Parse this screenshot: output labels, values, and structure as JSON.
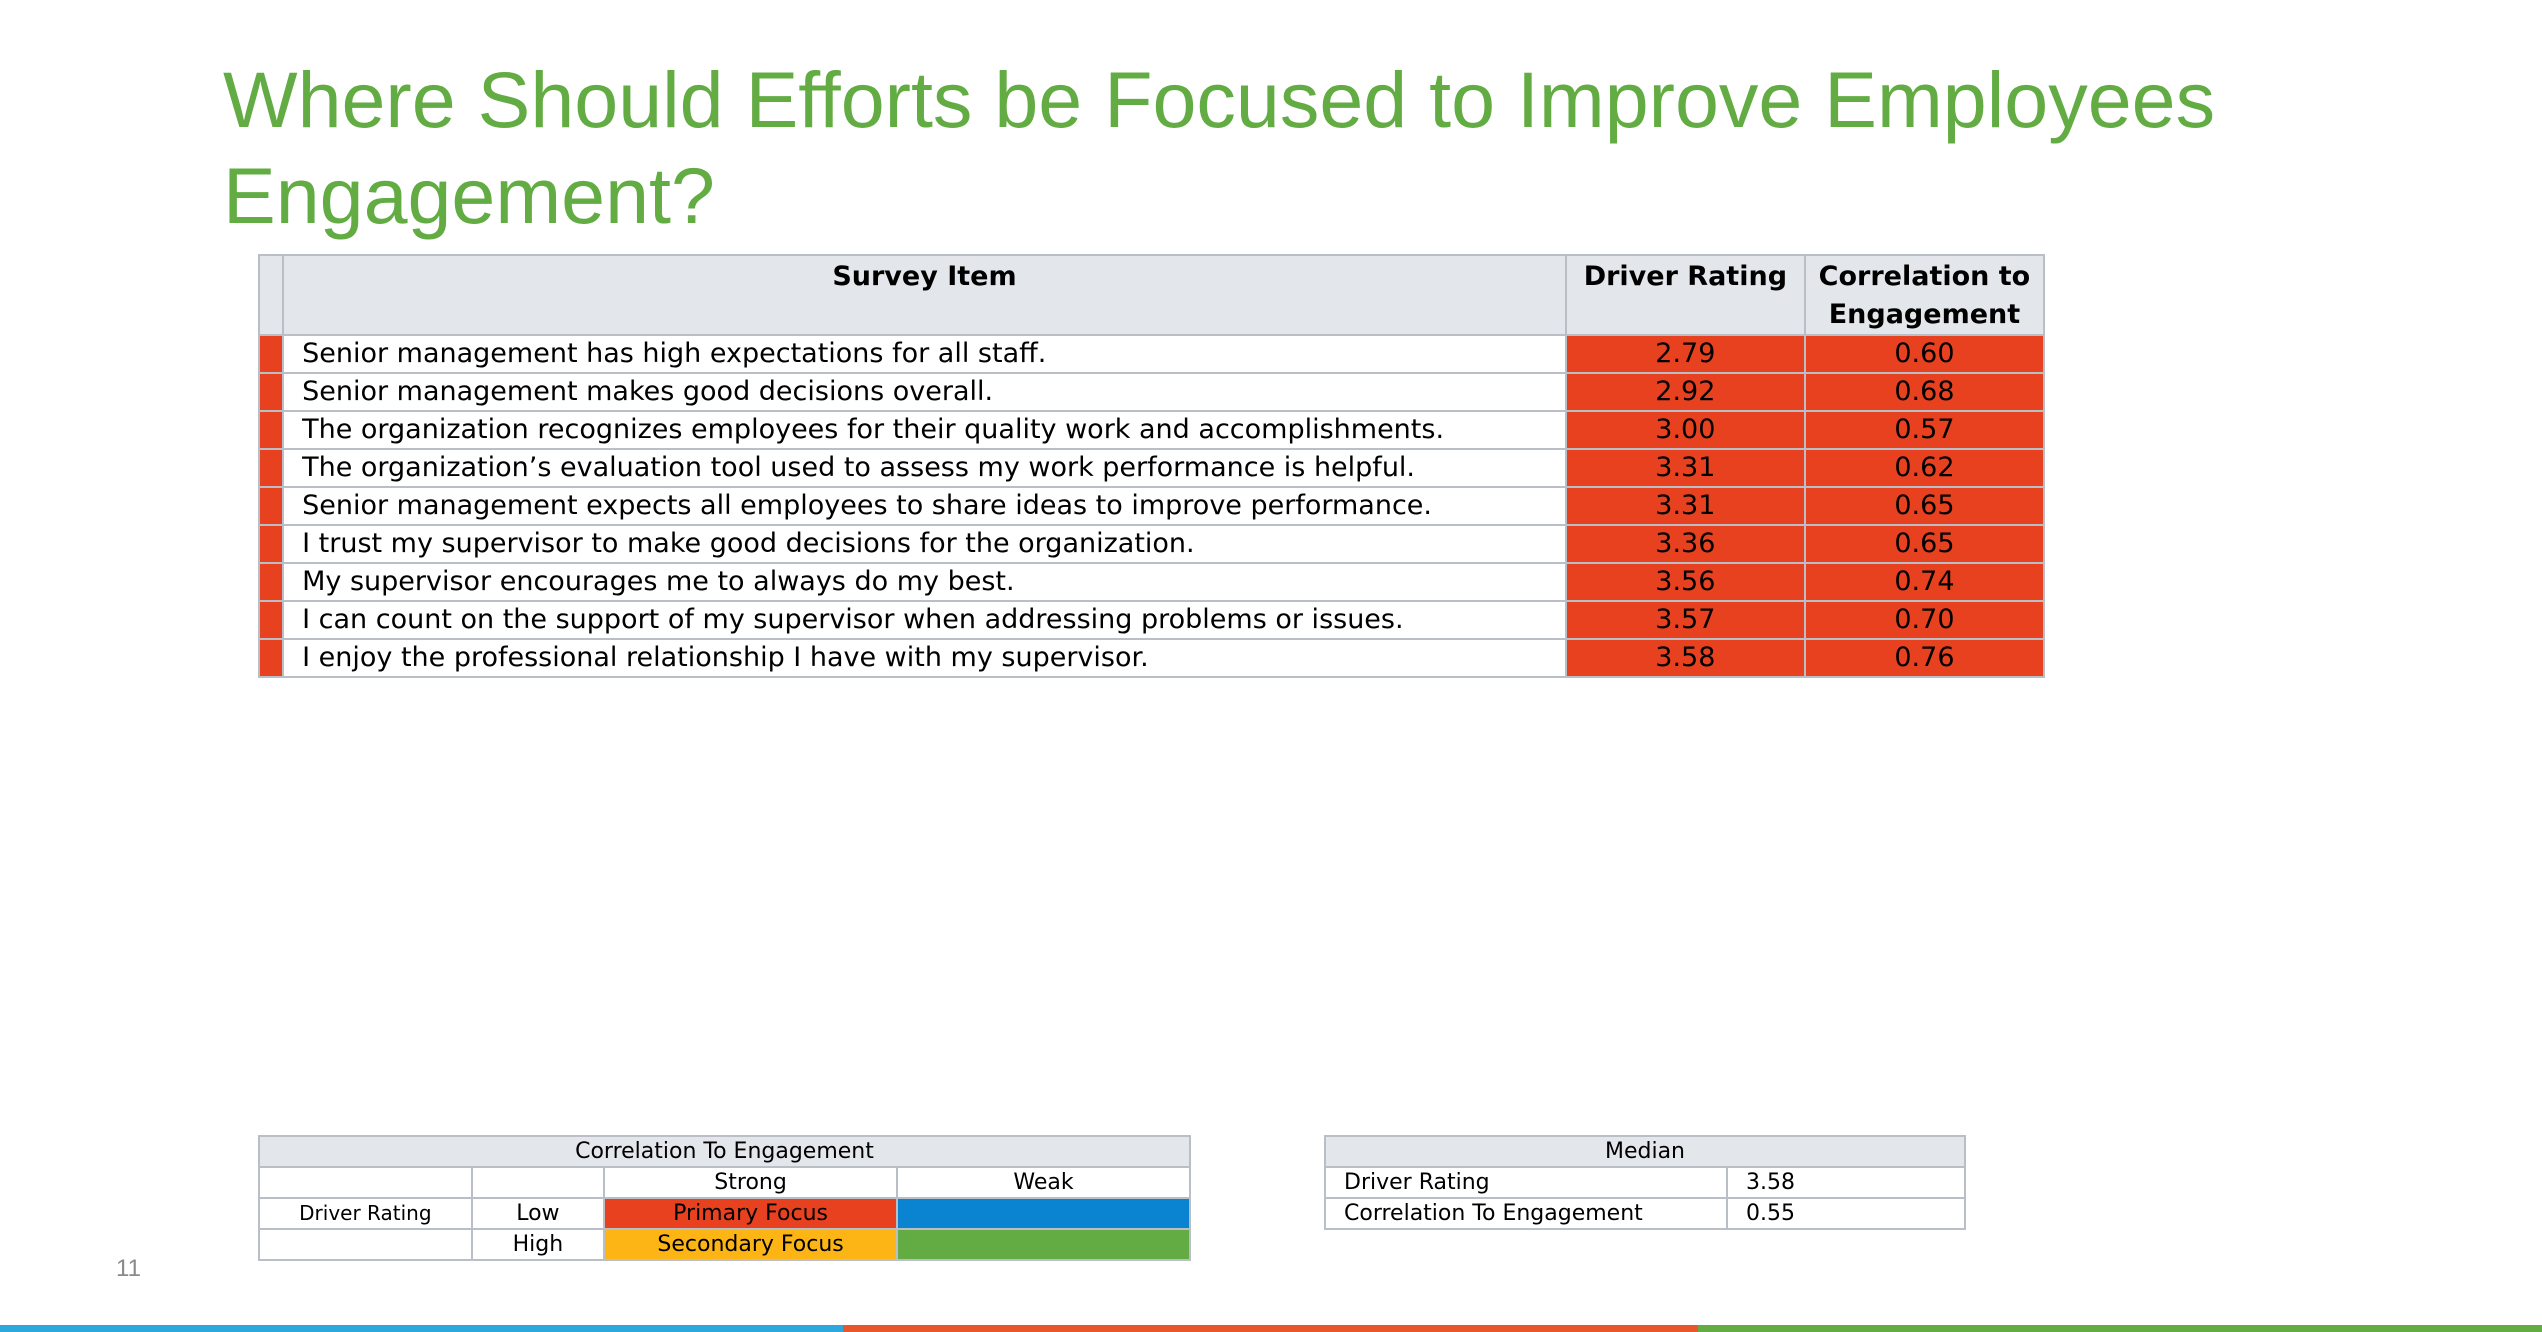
{
  "title": "Where Should Efforts be Focused to Improve Employees Engagement?",
  "table": {
    "headers": {
      "item": "Survey Item",
      "rating": "Driver Rating",
      "correlation": "Correlation to Engagement"
    },
    "rows": [
      {
        "item": "Senior management has high expectations for all staff.",
        "rating": "2.79",
        "correlation": "0.60"
      },
      {
        "item": "Senior management makes good decisions overall.",
        "rating": "2.92",
        "correlation": "0.68"
      },
      {
        "item": "The organization recognizes employees for their quality work and accomplishments.",
        "rating": "3.00",
        "correlation": "0.57"
      },
      {
        "item": "The organization’s evaluation tool used to assess my work performance is helpful.",
        "rating": "3.31",
        "correlation": "0.62"
      },
      {
        "item": "Senior management expects all employees to share ideas to improve performance.",
        "rating": "3.31",
        "correlation": "0.65"
      },
      {
        "item": "I trust my supervisor to make good decisions for the organization.",
        "rating": "3.36",
        "correlation": "0.65"
      },
      {
        "item": "My supervisor encourages me to always do my best.",
        "rating": "3.56",
        "correlation": "0.74"
      },
      {
        "item": "I can count on the support of my supervisor when addressing problems or issues.",
        "rating": "3.57",
        "correlation": "0.70"
      },
      {
        "item": "I enjoy the professional relationship I have with my supervisor.",
        "rating": "3.58",
        "correlation": "0.76"
      }
    ],
    "highlight_color": "#e8411f"
  },
  "legend": {
    "header": "Correlation To Engagement",
    "strong": "Strong",
    "weak": "Weak",
    "driver_rating": "Driver Rating",
    "low": "Low",
    "high": "High",
    "primary": "Primary Focus",
    "secondary": "Secondary Focus",
    "colors": {
      "primary": "#e8411f",
      "secondary": "#fdb515",
      "low_weak": "#0a84d0",
      "high_weak": "#62ac43"
    }
  },
  "median": {
    "header": "Median",
    "driver_rating_label": "Driver Rating",
    "driver_rating_value": "3.58",
    "correlation_label": "Correlation To Engagement",
    "correlation_value": "0.55"
  },
  "page_number": "11",
  "footer_colors": [
    "#2da8dd",
    "#e8562b",
    "#62ac43"
  ]
}
